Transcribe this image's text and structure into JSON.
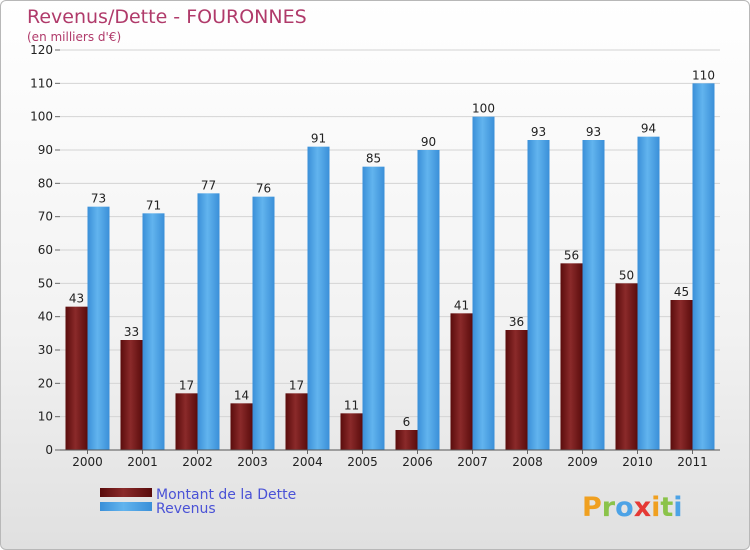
{
  "chart_data": {
    "type": "bar",
    "title": "Revenus/Dette - FOURONNES",
    "subtitle": "(en milliers d'€)",
    "categories": [
      "2000",
      "2001",
      "2002",
      "2003",
      "2004",
      "2005",
      "2006",
      "2007",
      "2008",
      "2009",
      "2010",
      "2011"
    ],
    "series": [
      {
        "name": "Montant de la Dette",
        "color": "#7a1a1a",
        "values": [
          43,
          33,
          17,
          14,
          17,
          11,
          6,
          41,
          36,
          56,
          50,
          45
        ]
      },
      {
        "name": "Revenus",
        "color": "#4da3e6",
        "values": [
          73,
          71,
          77,
          76,
          91,
          85,
          90,
          100,
          93,
          93,
          94,
          110
        ]
      }
    ],
    "ylim": [
      0,
      120
    ],
    "yticks": [
      0,
      10,
      20,
      30,
      40,
      50,
      60,
      70,
      80,
      90,
      100,
      110,
      120
    ],
    "xlabel": "",
    "ylabel": "",
    "grid": true,
    "legend_position": "bottom-left"
  },
  "logo": {
    "letters": [
      "P",
      "r",
      "o",
      "x",
      "i",
      "t",
      "i"
    ],
    "colors": [
      "#f0a020",
      "#8bc34a",
      "#4da3e6",
      "#e53935",
      "#f0a020",
      "#8bc34a",
      "#4da3e6"
    ]
  }
}
